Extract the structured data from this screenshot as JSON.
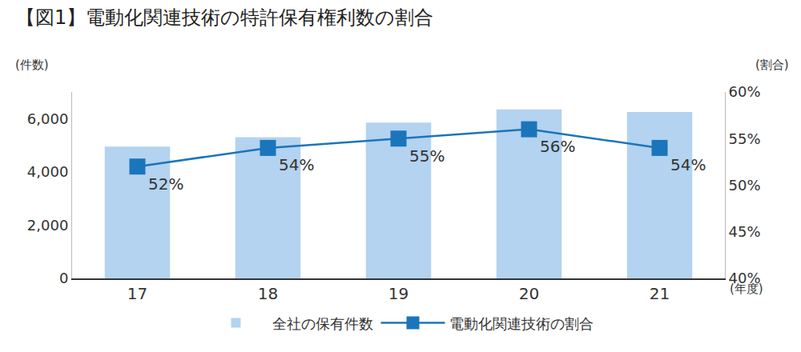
{
  "chart_data": {
    "type": "bar",
    "title": "【図1】電動化関連技術の特許保有権利数の割合",
    "xlabel": "(年度)",
    "ylabel": "(件数)",
    "y2label": "(割合)",
    "categories": [
      "17",
      "18",
      "19",
      "20",
      "21"
    ],
    "series": [
      {
        "name": "全社の保有件数",
        "type": "bar",
        "color": "#b3d3f0",
        "values": [
          4950,
          5300,
          5850,
          6350,
          6250
        ]
      },
      {
        "name": "電動化関連技術の割合",
        "type": "line",
        "axis": "y2",
        "color": "#1b75bb",
        "marker": "square",
        "line_style": "solid",
        "data_labels": true,
        "values": [
          52,
          54,
          55,
          56,
          54
        ],
        "value_labels": [
          "52%",
          "54%",
          "55%",
          "56%",
          "54%"
        ]
      }
    ],
    "ylim": [
      0,
      7000
    ],
    "yticks": [
      0,
      {
        "value": 2000,
        "label": "2,000"
      },
      {
        "value": 4000,
        "label": "4,000"
      },
      {
        "value": 6000,
        "label": "6,000"
      }
    ],
    "y2lim": [
      40,
      60
    ],
    "y2ticks": [
      {
        "value": 40,
        "label": "40%"
      },
      {
        "value": 45,
        "label": "45%"
      },
      {
        "value": 50,
        "label": "50%"
      },
      {
        "value": 55,
        "label": "55%"
      },
      {
        "value": 60,
        "label": "60%"
      }
    ],
    "grid": false,
    "legend": "bottom"
  }
}
